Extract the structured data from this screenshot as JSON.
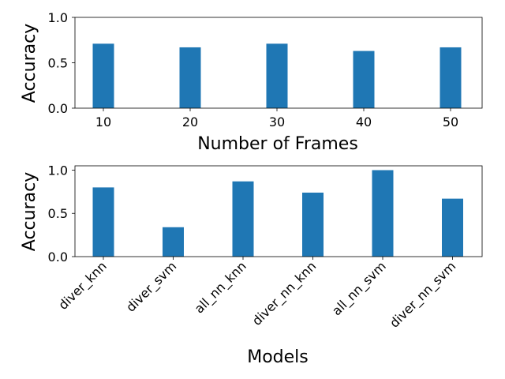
{
  "chart_data": [
    {
      "type": "bar",
      "categories": [
        "10",
        "20",
        "30",
        "40",
        "50"
      ],
      "values": [
        0.71,
        0.67,
        0.71,
        0.63,
        0.67
      ],
      "title": "",
      "xlabel": "Number of Frames",
      "ylabel": "Accuracy",
      "ylim": [
        0,
        1.0
      ],
      "yticks": [
        "0.0",
        "0.5",
        "1.0"
      ],
      "bar_color": "#1f77b4",
      "grid": false,
      "legend": "none"
    },
    {
      "type": "bar",
      "categories": [
        "diver_knn",
        "diver_svm",
        "all_nn_knn",
        "diver_nn_knn",
        "all_nn_svm",
        "diver_nn_svm"
      ],
      "values": [
        0.8,
        0.34,
        0.87,
        0.74,
        1.0,
        0.67
      ],
      "title": "",
      "xlabel": "Models",
      "ylabel": "Accuracy",
      "ylim": [
        0,
        1.05
      ],
      "yticks": [
        "0.0",
        "0.5",
        "1.0"
      ],
      "bar_color": "#1f77b4",
      "grid": false,
      "legend": "none"
    }
  ]
}
